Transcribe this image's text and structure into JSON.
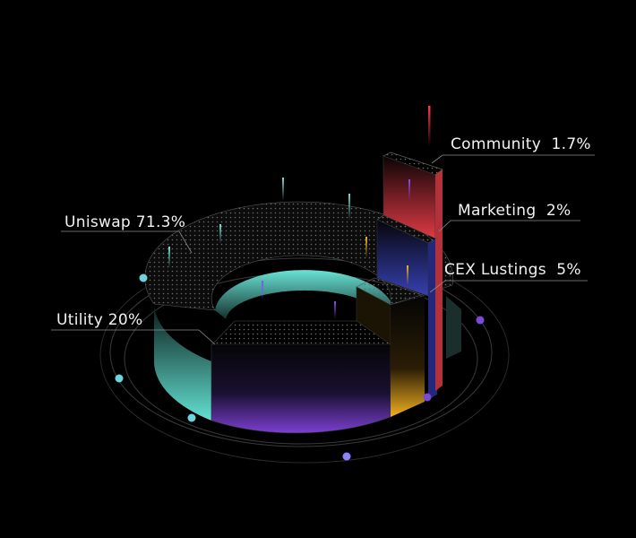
{
  "chart_data": {
    "type": "pie",
    "style": "3d-isometric-donut",
    "background": "#000000",
    "slices": [
      {
        "label": "Uniswap 71.3%",
        "name": "Uniswap",
        "value": 71.3,
        "color": "#5fd6c9"
      },
      {
        "label": "Utility 20%",
        "name": "Utility",
        "value": 20,
        "color": "#7b3fd1"
      },
      {
        "label": "CEX Lustings  5%",
        "name": "CEX Lustings",
        "value": 5,
        "color": "#e0a51f"
      },
      {
        "label": "Marketing  2%",
        "name": "Marketing",
        "value": 2,
        "color": "#3b3fa0"
      },
      {
        "label": "Community  1.7%",
        "name": "Community",
        "value": 1.7,
        "color": "#d8343f"
      }
    ]
  }
}
